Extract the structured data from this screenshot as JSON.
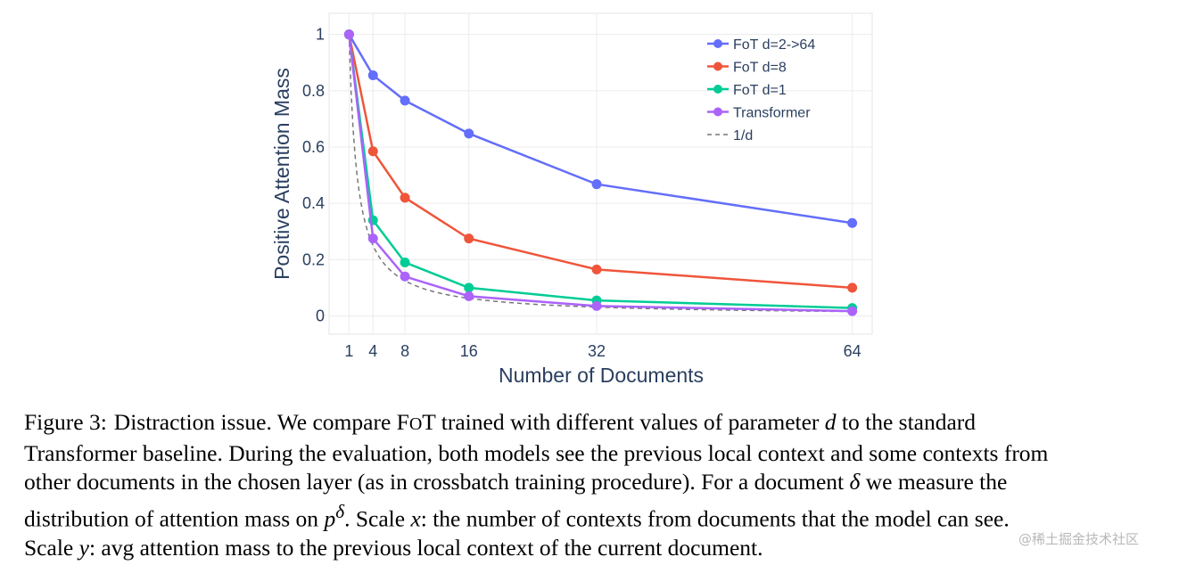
{
  "chart_data": {
    "type": "line",
    "xlabel": "Number of Documents",
    "ylabel": "Positive Attention Mass",
    "x_ticks": [
      1,
      4,
      8,
      16,
      32,
      64
    ],
    "y_ticks": [
      0,
      0.2,
      0.4,
      0.6,
      0.8,
      1
    ],
    "y_tick_labels": [
      "0",
      "0.2",
      "0.4",
      "0.6",
      "0.8",
      "1"
    ],
    "xlim": [
      -1.5,
      66.5
    ],
    "ylim": [
      -0.065,
      1.075
    ],
    "grid": true,
    "legend_position": "top-right",
    "x": [
      1,
      4,
      8,
      16,
      32,
      64
    ],
    "series": [
      {
        "name": "FoT d=2->64",
        "color": "#636efa",
        "values": [
          1.0,
          0.855,
          0.765,
          0.648,
          0.468,
          0.33
        ]
      },
      {
        "name": "FoT d=8",
        "color": "#ef553b",
        "values": [
          1.0,
          0.585,
          0.42,
          0.275,
          0.165,
          0.1
        ]
      },
      {
        "name": "FoT d=1",
        "color": "#00cc96",
        "values": [
          1.0,
          0.34,
          0.19,
          0.1,
          0.055,
          0.028
        ]
      },
      {
        "name": "Transformer",
        "color": "#ab63fa",
        "values": [
          1.0,
          0.275,
          0.14,
          0.07,
          0.035,
          0.017
        ]
      }
    ],
    "reference": {
      "name": "1/d",
      "color": "#777777",
      "dashed": true
    }
  },
  "caption": {
    "label": "Figure 3:",
    "lines": [
      [
        {
          "t": "Distraction issue. We compare F"
        },
        {
          "t": "O",
          "sc": true
        },
        {
          "t": "T trained with different values of parameter "
        },
        {
          "t": "d",
          "m": true
        },
        {
          "t": " to the standard"
        }
      ],
      [
        {
          "t": "Transformer baseline. During the evaluation, both models see the previous local context and some contexts from"
        }
      ],
      [
        {
          "t": "other documents in the chosen layer (as in crossbatch training procedure). For a document "
        },
        {
          "t": "δ",
          "m": true
        },
        {
          "t": " we measure the"
        }
      ],
      [
        {
          "t": "distribution of attention mass on "
        },
        {
          "t": "p",
          "m": true
        },
        {
          "t": "δ",
          "m": true,
          "sup": true
        },
        {
          "t": ". Scale "
        },
        {
          "t": "x",
          "m": true
        },
        {
          "t": ": the number of contexts from documents that the model can see."
        }
      ],
      [
        {
          "t": "Scale "
        },
        {
          "t": "y",
          "m": true
        },
        {
          "t": ": avg attention mass to the previous local context of the current document."
        }
      ]
    ]
  },
  "watermark": "@稀土掘金技术社区"
}
